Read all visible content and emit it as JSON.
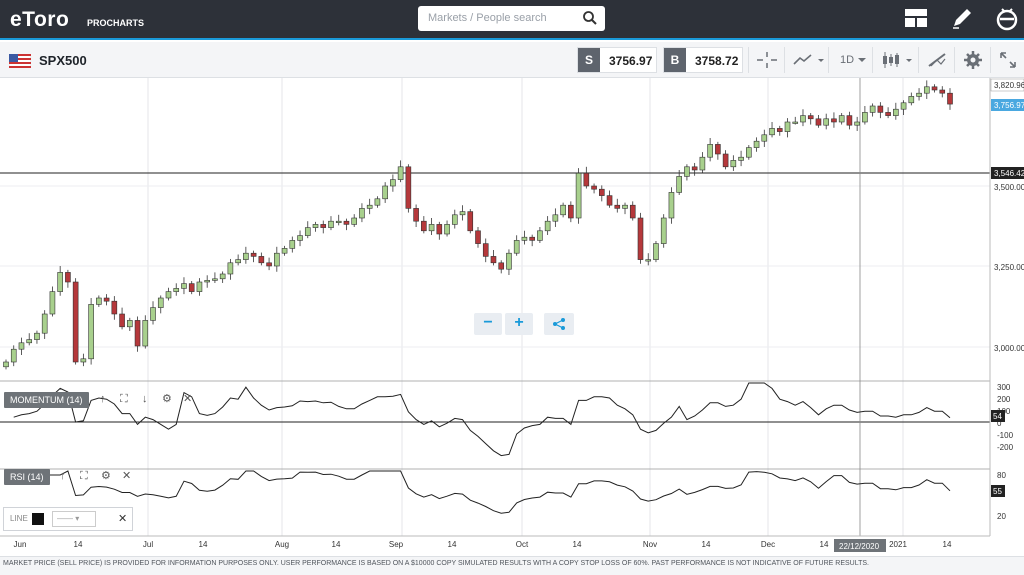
{
  "header": {
    "logo": "eToro",
    "logo_sub": "PROCHARTS",
    "search_placeholder": "Markets / People search",
    "icons": [
      "layout-icon",
      "pen-icon",
      "etoro-e-icon"
    ]
  },
  "instrument": {
    "symbol": "SPX500",
    "sell_tag": "S",
    "sell_price": "3756.97",
    "buy_tag": "B",
    "buy_price": "3758.72",
    "timeframe": "1D"
  },
  "price_axis": {
    "labels": [
      "3,820.96",
      "3,756.97",
      "3,546.42",
      "3,500.00",
      "3,250.00",
      "3,000.00"
    ]
  },
  "momentum": {
    "label": "MOMENTUM (14)",
    "axis": [
      "300",
      "200",
      "100",
      "0",
      "-100",
      "-200"
    ],
    "value": "54"
  },
  "rsi": {
    "label": "RSI (14)",
    "axis": [
      "80",
      "20"
    ],
    "value": "55"
  },
  "draw_tool": {
    "label": "LINE",
    "style_value": "——"
  },
  "x_axis": {
    "labels": [
      "Jun",
      "14",
      "Jul",
      "14",
      "Aug",
      "14",
      "Sep",
      "14",
      "Oct",
      "14",
      "Nov",
      "14",
      "Dec",
      "14",
      "2021",
      "14"
    ],
    "cursor_date": "22/12/2020"
  },
  "zoom": {
    "minus": "−",
    "plus": "+"
  },
  "footer": "MARKET PRICE (SELL PRICE) IS PROVIDED FOR INFORMATION PURPOSES ONLY. USER PERFORMANCE IS BASED ON A $10000 COPY SIMULATED RESULTS WITH A COPY STOP LOSS OF 60%. PAST PERFORMANCE IS NOT INDICATIVE OF FUTURE RESULTS.",
  "colors": {
    "up": "#a8d08d",
    "down": "#b5383b",
    "accent": "#1a9ad9",
    "topbar": "#2d3139"
  },
  "chart_data": {
    "type": "candlestick",
    "closes": [
      2950,
      2990,
      3010,
      3020,
      3040,
      3100,
      3170,
      3230,
      3200,
      2950,
      2960,
      3130,
      3150,
      3140,
      3100,
      3060,
      3080,
      3000,
      3080,
      3120,
      3150,
      3170,
      3180,
      3195,
      3170,
      3200,
      3205,
      3210,
      3225,
      3260,
      3270,
      3290,
      3280,
      3260,
      3250,
      3290,
      3305,
      3330,
      3345,
      3370,
      3380,
      3370,
      3390,
      3390,
      3380,
      3400,
      3430,
      3440,
      3460,
      3500,
      3520,
      3560,
      3430,
      3390,
      3360,
      3380,
      3350,
      3380,
      3410,
      3420,
      3360,
      3320,
      3280,
      3260,
      3240,
      3290,
      3330,
      3340,
      3330,
      3360,
      3390,
      3410,
      3440,
      3400,
      3540,
      3500,
      3490,
      3470,
      3440,
      3430,
      3440,
      3400,
      3270,
      3270,
      3320,
      3400,
      3480,
      3530,
      3560,
      3550,
      3590,
      3630,
      3600,
      3560,
      3580,
      3590,
      3620,
      3640,
      3660,
      3680,
      3670,
      3700,
      3700,
      3720,
      3710,
      3690,
      3710,
      3700,
      3720,
      3690,
      3700,
      3730,
      3750,
      3730,
      3720,
      3740,
      3760,
      3780,
      3790,
      3810,
      3800,
      3790,
      3756
    ]
  }
}
